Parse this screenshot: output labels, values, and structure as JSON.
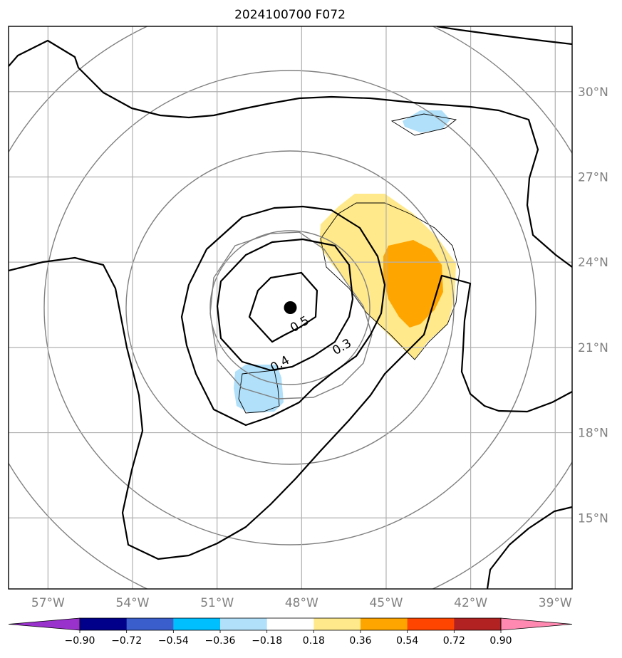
{
  "chart_data": {
    "type": "contour-map",
    "title": "2024100700 F072",
    "x_ticks": [
      "57°W",
      "54°W",
      "51°W",
      "48°W",
      "45°W",
      "42°W",
      "39°W"
    ],
    "x_tick_values": [
      -57,
      -54,
      -51,
      -48,
      -45,
      -42,
      -39
    ],
    "y_ticks": [
      "30°N",
      "27°N",
      "24°N",
      "21°N",
      "18°N",
      "15°N"
    ],
    "y_tick_values": [
      30,
      27,
      24,
      21,
      18,
      15
    ],
    "xlim": [
      -58.4,
      -38.4
    ],
    "ylim": [
      12.5,
      32.3
    ],
    "grid": true,
    "center_marker": {
      "lon": -48.4,
      "lat": 22.4
    },
    "contour_labels": [
      {
        "text": "0.5",
        "lon": -48.0,
        "lat": 21.7
      },
      {
        "text": "0.4",
        "lon": -48.7,
        "lat": 20.3
      },
      {
        "text": "0.3",
        "lon": -46.5,
        "lat": 20.9
      }
    ],
    "colorbar": {
      "boundaries": [
        "−0.90",
        "−0.72",
        "−0.54",
        "−0.36",
        "−0.18",
        "0.18",
        "0.36",
        "0.54",
        "0.72",
        "0.90"
      ],
      "colors": [
        "#9932cc",
        "#00008b",
        "#3a5fcd",
        "#00bfff",
        "#b0e0fa",
        "#ffffff",
        "#ffe98a",
        "#ffa500",
        "#ff4500",
        "#b22222",
        "#ff89b0"
      ],
      "extend": "both"
    },
    "shaded_regions": [
      {
        "level": "0.18–0.36",
        "color": "#ffe98a"
      },
      {
        "level": "0.36–0.54",
        "color": "#ffa500"
      },
      {
        "level": "−0.36–−0.18",
        "color": "#b0e0fa"
      }
    ]
  }
}
